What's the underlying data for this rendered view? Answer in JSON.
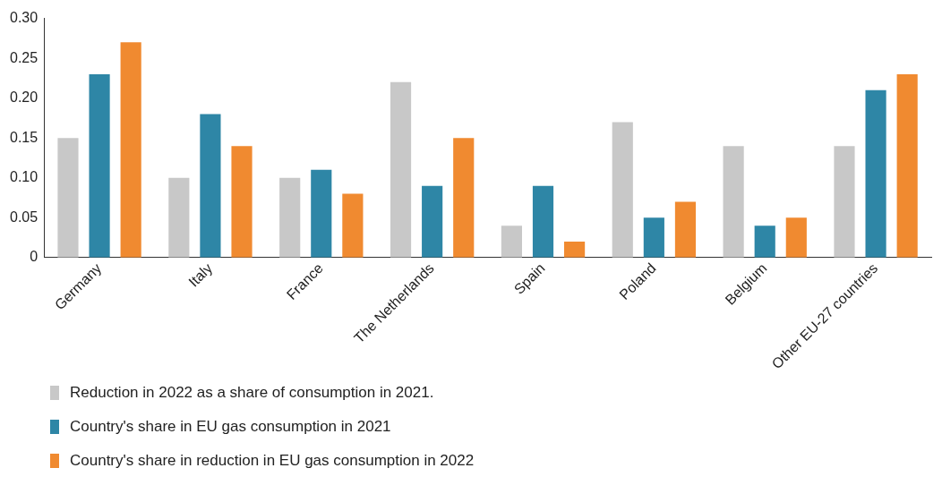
{
  "chart_data": {
    "type": "bar",
    "categories": [
      "Germany",
      "Italy",
      "France",
      "The Netherlands",
      "Spain",
      "Poland",
      "Belgium",
      "Other EU-27 countries"
    ],
    "series": [
      {
        "name": "Reduction in 2022 as a share of consumption in 2021.",
        "color": "#c8c8c8",
        "values": [
          0.15,
          0.1,
          0.1,
          0.22,
          0.04,
          0.17,
          0.14,
          0.14
        ]
      },
      {
        "name": "Country's share in EU gas consumption in 2021",
        "color": "#2e86a6",
        "values": [
          0.23,
          0.18,
          0.11,
          0.09,
          0.09,
          0.05,
          0.04,
          0.21
        ]
      },
      {
        "name": "Country's share in reduction in EU gas consumption in 2022",
        "color": "#f08a30",
        "values": [
          0.27,
          0.14,
          0.08,
          0.15,
          0.02,
          0.07,
          0.05,
          0.23
        ]
      }
    ],
    "ylim": [
      0,
      0.3
    ],
    "yticks": [
      {
        "value": 0,
        "label": "0"
      },
      {
        "value": 0.05,
        "label": "0.05"
      },
      {
        "value": 0.1,
        "label": "0.10"
      },
      {
        "value": 0.15,
        "label": "0.15"
      },
      {
        "value": 0.2,
        "label": "0.20"
      },
      {
        "value": 0.25,
        "label": "0.25"
      },
      {
        "value": 0.3,
        "label": "0.30"
      }
    ],
    "grid": false,
    "legend": "bottom left"
  }
}
